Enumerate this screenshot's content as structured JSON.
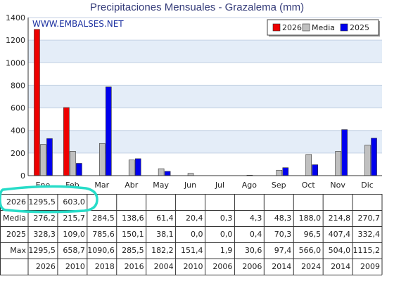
{
  "title": "Precipitaciones Mensuales - Grazalema (mm)",
  "watermark": "WWW.EMBALSES.NET",
  "colors": {
    "s2026": "#ee0000",
    "media": "#c0c0c0",
    "s2025": "#0000ee",
    "band": "#e4edf8",
    "grid": "#c4d2e4",
    "annotation": "#27dcc8",
    "text": "#222222",
    "watermark": "#1a2fa0"
  },
  "chart_data": {
    "type": "bar",
    "title": "Precipitaciones Mensuales - Grazalema (mm)",
    "categories": [
      "Ene",
      "Feb",
      "Mar",
      "Abr",
      "May",
      "Jun",
      "Jul",
      "Ago",
      "Sep",
      "Oct",
      "Nov",
      "Dic"
    ],
    "ylim": [
      0,
      1400
    ],
    "yticks": [
      0,
      200,
      400,
      600,
      800,
      1000,
      1200,
      1400
    ],
    "legend_position": "top-right",
    "series": [
      {
        "name": "2026",
        "values": [
          1295.5,
          603.0,
          null,
          null,
          null,
          null,
          null,
          null,
          null,
          null,
          null,
          null
        ]
      },
      {
        "name": "Media",
        "values": [
          276.2,
          215.7,
          284.5,
          138.6,
          61.4,
          20.4,
          0.3,
          4.3,
          48.3,
          188.0,
          214.8,
          270.7
        ]
      },
      {
        "name": "2025",
        "values": [
          328.3,
          109.0,
          785.6,
          150.1,
          38.1,
          0.0,
          0.0,
          0.4,
          70.3,
          96.5,
          407.4,
          332.4
        ]
      }
    ]
  },
  "table": {
    "rows": [
      {
        "label": "2026",
        "cells": [
          "1295,5",
          "603,0",
          "",
          "",
          "",
          "",
          "",
          "",
          "",
          "",
          "",
          ""
        ]
      },
      {
        "label": "Media",
        "cells": [
          "276,2",
          "215,7",
          "284,5",
          "138,6",
          "61,4",
          "20,4",
          "0,3",
          "4,3",
          "48,3",
          "188,0",
          "214,8",
          "270,7"
        ]
      },
      {
        "label": "2025",
        "cells": [
          "328,3",
          "109,0",
          "785,6",
          "150,1",
          "38,1",
          "0,0",
          "0,0",
          "0,4",
          "70,3",
          "96,5",
          "407,4",
          "332,4"
        ]
      },
      {
        "label": "Max",
        "cells": [
          "1295,5",
          "658,7",
          "1090,6",
          "285,5",
          "182,2",
          "151,4",
          "1,9",
          "30,6",
          "97,4",
          "566,0",
          "504,0",
          "1115,2"
        ]
      },
      {
        "label": "",
        "cells": [
          "2026",
          "2010",
          "2018",
          "2016",
          "2004",
          "2010",
          "2006",
          "2006",
          "2014",
          "2024",
          "2014",
          "2009"
        ]
      }
    ]
  }
}
